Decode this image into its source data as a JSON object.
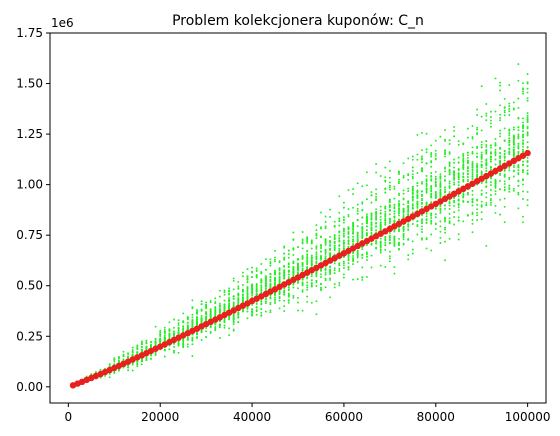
{
  "chart_data": {
    "type": "scatter",
    "title": "Problem kolekcjonera kuponów: C_n",
    "xlabel": "",
    "ylabel": "",
    "y_offset_label": "1e6",
    "xlim": [
      -4000,
      104000
    ],
    "ylim": [
      -80000,
      1750000
    ],
    "x_ticks": [
      0,
      20000,
      40000,
      60000,
      80000,
      100000
    ],
    "x_tick_labels": [
      "0",
      "20000",
      "40000",
      "60000",
      "80000",
      "100000"
    ],
    "y_ticks": [
      0,
      250000,
      500000,
      750000,
      1000000,
      1250000,
      1500000,
      1750000
    ],
    "y_tick_labels": [
      "0.00",
      "0.25",
      "0.50",
      "0.75",
      "1.00",
      "1.25",
      "1.50",
      "1.75"
    ],
    "grid": false,
    "series": [
      {
        "color": "#22ee22",
        "marker_size": 1.8,
        "x_start": 1000,
        "x_step": 1000,
        "samples_per_x": 40,
        "trend": "n*ln(n)",
        "points_note": "scatter cloud of simulated values"
      },
      {
        "color": "#e8201e",
        "marker_size": 3.2,
        "x": [
          1000,
          2000,
          3000,
          4000,
          5000,
          6000,
          7000,
          8000,
          9000,
          10000,
          11000,
          12000,
          13000,
          14000,
          15000,
          16000,
          17000,
          18000,
          19000,
          20000,
          21000,
          22000,
          23000,
          24000,
          25000,
          26000,
          27000,
          28000,
          29000,
          30000,
          31000,
          32000,
          33000,
          34000,
          35000,
          36000,
          37000,
          38000,
          39000,
          40000,
          41000,
          42000,
          43000,
          44000,
          45000,
          46000,
          47000,
          48000,
          49000,
          50000,
          51000,
          52000,
          53000,
          54000,
          55000,
          56000,
          57000,
          58000,
          59000,
          60000,
          61000,
          62000,
          63000,
          64000,
          65000,
          66000,
          67000,
          68000,
          69000,
          70000,
          71000,
          72000,
          73000,
          74000,
          75000,
          76000,
          77000,
          78000,
          79000,
          80000,
          81000,
          82000,
          83000,
          84000,
          85000,
          86000,
          87000,
          88000,
          89000,
          90000,
          91000,
          92000,
          93000,
          94000,
          95000,
          96000,
          97000,
          98000,
          99000,
          100000
        ],
        "y": [
          7485,
          15977,
          24923,
          34177,
          43661,
          53329,
          63153,
          73108,
          83179,
          93353,
          103620,
          113971,
          124401,
          134902,
          145470,
          156101,
          166790,
          177536,
          188334,
          199183,
          210079,
          221021,
          232007,
          243036,
          254105,
          265213,
          276359,
          287542,
          298761,
          310014,
          321301,
          332621,
          343972,
          355355,
          366768,
          378211,
          389683,
          401183,
          412711,
          424266,
          435848,
          447456,
          459089,
          470748,
          482431,
          494139,
          505870,
          517626,
          529404,
          541206,
          553030,
          564877,
          576745,
          588635,
          600547,
          612481,
          624435,
          636410,
          648406,
          660422,
          672458,
          684514,
          696590,
          708685,
          720800,
          732934,
          745087,
          757258,
          769449,
          781657,
          793885,
          806130,
          818394,
          830676,
          842975,
          855293,
          867628,
          879980,
          892351,
          904738,
          917143,
          929565,
          942004,
          954460,
          966932,
          979422,
          991928,
          1004451,
          1016990,
          1029546,
          1042118,
          1054706,
          1067310,
          1079930,
          1092566,
          1105218,
          1117885,
          1130568,
          1143267,
          1155982
        ]
      }
    ]
  }
}
